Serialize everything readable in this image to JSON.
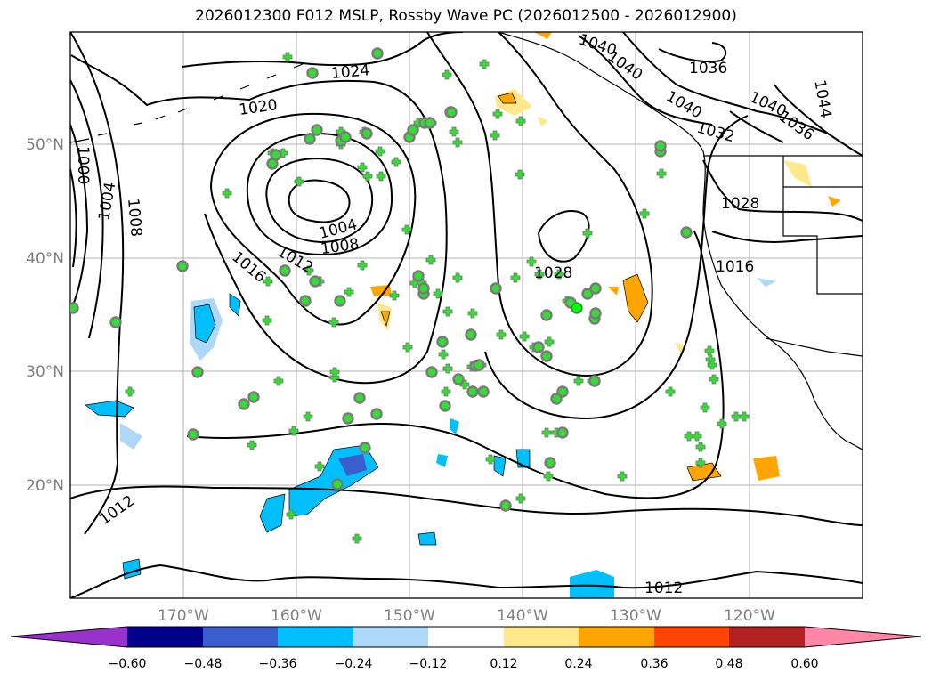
{
  "title": "2026012300 F012 MSLP, Rossby Wave PC (2026012500 - 2026012900)",
  "map": {
    "lat_labels": [
      "50°N",
      "40°N",
      "30°N",
      "20°N"
    ],
    "lon_labels": [
      "170°W",
      "160°W",
      "150°W",
      "140°W",
      "130°W",
      "120°W"
    ],
    "grid_color": "#b0b0b0",
    "contour_labels": [
      "1000",
      "1004",
      "1008",
      "1020",
      "1024",
      "1016",
      "1012",
      "1004",
      "1008",
      "1028",
      "1040",
      "1040",
      "1036",
      "1040",
      "1032",
      "1040",
      "1036",
      "1044",
      "1028",
      "1016",
      "1012",
      "1012"
    ]
  },
  "colorbar": {
    "ticks": [
      "−0.60",
      "−0.48",
      "−0.36",
      "−0.24",
      "−0.12",
      "0.12",
      "0.24",
      "0.36",
      "0.48",
      "0.60"
    ],
    "colors": [
      "#9932cc",
      "#00008b",
      "#3a5fcd",
      "#00bfff",
      "#add8f7",
      "#ffffff",
      "#ffe88a",
      "#ffa500",
      "#ff4500",
      "#b22222",
      "#ff86a6"
    ]
  },
  "markers": {
    "plus_color": "#33dd33",
    "circle_color": "#33dd33"
  }
}
